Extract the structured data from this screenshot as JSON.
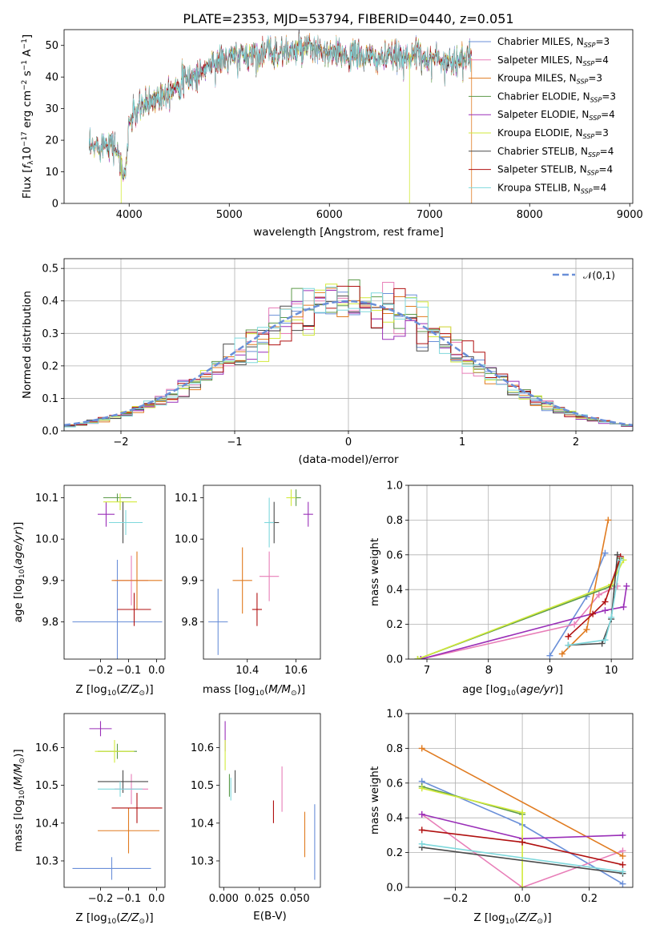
{
  "figure_title": "PLATE=2353, MJD=53794, FIBERID=0440, z=0.051",
  "models": [
    {
      "name": "Chabrier MILES",
      "nssp": 3,
      "color": "#6a8fd8"
    },
    {
      "name": "Salpeter MILES",
      "nssp": 4,
      "color": "#e87eb8"
    },
    {
      "name": "Kroupa MILES",
      "nssp": 3,
      "color": "#e07b20"
    },
    {
      "name": "Chabrier ELODIE",
      "nssp": 3,
      "color": "#5c9a4a"
    },
    {
      "name": "Salpeter ELODIE",
      "nssp": 4,
      "color": "#9a2fb8"
    },
    {
      "name": "Kroupa ELODIE",
      "nssp": 3,
      "color": "#d2ea3a"
    },
    {
      "name": "Chabrier STELIB",
      "nssp": 4,
      "color": "#4a4a4a"
    },
    {
      "name": "Salpeter STELIB",
      "nssp": 4,
      "color": "#b01010"
    },
    {
      "name": "Kroupa STELIB",
      "nssp": 4,
      "color": "#7fd8dc"
    }
  ],
  "chart_data": [
    {
      "id": "spectrum",
      "type": "line",
      "xlabel": "wavelength [Angstrom, rest frame]",
      "ylabel": "Flux [f_λ10^-17 erg cm^-2 s^-1 A^-1]",
      "xlim": [
        3350,
        9030
      ],
      "ylim": [
        0,
        55
      ],
      "xticks": [
        4000,
        5000,
        6000,
        7000,
        8000,
        9000
      ],
      "yticks": [
        0,
        10,
        20,
        30,
        40,
        50
      ],
      "x_range": [
        3600,
        7420
      ],
      "x": [
        3600,
        3800,
        3920,
        3950,
        4000,
        4100,
        4300,
        4500,
        4700,
        4800,
        5000,
        5200,
        5400,
        5600,
        5800,
        6000,
        6200,
        6400,
        6600,
        6800,
        7000,
        7200,
        7400
      ],
      "y": [
        17,
        20,
        15,
        12,
        26,
        30,
        34,
        38,
        41,
        44,
        46,
        47,
        48,
        48,
        49,
        47,
        47,
        46,
        46,
        47,
        46,
        45,
        46
      ]
    },
    {
      "id": "residuals",
      "type": "line",
      "xlabel": "(data-model)/error",
      "ylabel": "Normed distribution",
      "legend": "𝒩(0,1)",
      "xlim": [
        -2.5,
        2.5
      ],
      "ylim": [
        0,
        0.53
      ],
      "xticks": [
        -2,
        -1,
        0,
        1,
        2
      ],
      "yticks": [
        0.0,
        0.1,
        0.2,
        0.3,
        0.4,
        0.5
      ],
      "grid": true,
      "bin_edges_range": [
        -2.5,
        2.5
      ],
      "bin_width": 0.1,
      "gaussian": {
        "mu": 0,
        "sigma": 1
      }
    },
    {
      "id": "age_vs_Z",
      "type": "scatter",
      "xlabel": "Z [log10(Z/Z⊙)]",
      "ylabel": "age  [log10(age/yr)]",
      "xlim": [
        -0.33,
        0.03
      ],
      "ylim": [
        9.71,
        10.13
      ],
      "xticks": [
        -0.2,
        -0.1,
        0.0
      ],
      "yticks": [
        9.8,
        9.9,
        10.0,
        10.1
      ],
      "points": [
        {
          "x": -0.14,
          "y": 9.8,
          "ex": 0.16,
          "ey": 0.15
        },
        {
          "x": -0.09,
          "y": 9.9,
          "ex": 0.06,
          "ey": 0.06
        },
        {
          "x": -0.07,
          "y": 9.9,
          "ex": 0.09,
          "ey": 0.07
        },
        {
          "x": -0.14,
          "y": 10.1,
          "ex": 0.05,
          "ey": 0.01
        },
        {
          "x": -0.18,
          "y": 10.06,
          "ex": 0.03,
          "ey": 0.03
        },
        {
          "x": -0.13,
          "y": 10.09,
          "ex": 0.06,
          "ey": 0.02
        },
        {
          "x": -0.12,
          "y": 10.04,
          "ex": 0.05,
          "ey": 0.05
        },
        {
          "x": -0.08,
          "y": 9.83,
          "ex": 0.06,
          "ey": 0.04
        },
        {
          "x": -0.11,
          "y": 10.04,
          "ex": 0.06,
          "ey": 0.03
        }
      ]
    },
    {
      "id": "age_vs_mass",
      "type": "scatter",
      "xlabel": "mass [log10(M/M⊙)]",
      "ylabel": "",
      "xlim": [
        10.22,
        10.7
      ],
      "ylim": [
        9.71,
        10.13
      ],
      "xticks": [
        10.4,
        10.6
      ],
      "yticks": [
        9.8,
        9.9,
        10.0,
        10.1
      ],
      "points": [
        {
          "x": 10.28,
          "y": 9.8,
          "ex": 0.04,
          "ey": 0.08
        },
        {
          "x": 10.49,
          "y": 9.91,
          "ex": 0.04,
          "ey": 0.06
        },
        {
          "x": 10.38,
          "y": 9.9,
          "ex": 0.04,
          "ey": 0.08
        },
        {
          "x": 10.6,
          "y": 10.1,
          "ex": 0.02,
          "ey": 0.02
        },
        {
          "x": 10.65,
          "y": 10.06,
          "ex": 0.02,
          "ey": 0.03
        },
        {
          "x": 10.58,
          "y": 10.1,
          "ex": 0.02,
          "ey": 0.02
        },
        {
          "x": 10.51,
          "y": 10.04,
          "ex": 0.02,
          "ey": 0.05
        },
        {
          "x": 10.44,
          "y": 9.83,
          "ex": 0.02,
          "ey": 0.04
        },
        {
          "x": 10.49,
          "y": 10.04,
          "ex": 0.02,
          "ey": 0.06
        }
      ]
    },
    {
      "id": "mass_weight_vs_age",
      "type": "line",
      "xlabel": "age  [log10(age/yr)]",
      "ylabel": "mass weight",
      "xlim": [
        6.7,
        10.35
      ],
      "ylim": [
        0,
        1
      ],
      "xticks": [
        7,
        8,
        9,
        10
      ],
      "yticks": [
        0.0,
        0.2,
        0.4,
        0.6,
        0.8,
        1.0
      ],
      "grid": true,
      "series": [
        {
          "x": [
            9.0,
            9.6,
            9.9
          ],
          "y": [
            0.02,
            0.36,
            0.61
          ]
        },
        {
          "x": [
            6.9,
            9.4,
            9.8,
            10.1
          ],
          "y": [
            0.0,
            0.2,
            0.37,
            0.42
          ]
        },
        {
          "x": [
            9.2,
            9.6,
            9.95
          ],
          "y": [
            0.03,
            0.17,
            0.8
          ]
        },
        {
          "x": [
            6.85,
            10.0,
            10.15
          ],
          "y": [
            0.0,
            0.42,
            0.58
          ]
        },
        {
          "x": [
            6.9,
            9.9,
            10.2,
            10.25
          ],
          "y": [
            0.0,
            0.28,
            0.3,
            0.42
          ]
        },
        {
          "x": [
            6.85,
            10.0,
            10.2
          ],
          "y": [
            0.0,
            0.43,
            0.57
          ]
        },
        {
          "x": [
            9.3,
            9.85,
            10.0,
            10.1
          ],
          "y": [
            0.08,
            0.09,
            0.23,
            0.6
          ]
        },
        {
          "x": [
            9.3,
            9.7,
            9.9,
            10.15
          ],
          "y": [
            0.13,
            0.26,
            0.33,
            0.59
          ]
        },
        {
          "x": [
            9.3,
            9.9,
            10.0,
            10.15
          ],
          "y": [
            0.08,
            0.11,
            0.24,
            0.57
          ]
        }
      ]
    },
    {
      "id": "mass_vs_Z",
      "type": "scatter",
      "xlabel": "Z [log10(Z/Z⊙)]",
      "ylabel": "mass [log10(M/M⊙)]",
      "xlim": [
        -0.33,
        0.03
      ],
      "ylim": [
        10.23,
        10.69
      ],
      "xticks": [
        -0.2,
        -0.1,
        0.0
      ],
      "yticks": [
        10.3,
        10.4,
        10.5,
        10.6
      ],
      "points": [
        {
          "x": -0.16,
          "y": 10.28,
          "ex": 0.14,
          "ey": 0.03
        },
        {
          "x": -0.09,
          "y": 10.49,
          "ex": 0.06,
          "ey": 0.04
        },
        {
          "x": -0.1,
          "y": 10.38,
          "ex": 0.11,
          "ey": 0.06
        },
        {
          "x": -0.14,
          "y": 10.59,
          "ex": 0.07,
          "ey": 0.02
        },
        {
          "x": -0.2,
          "y": 10.65,
          "ex": 0.04,
          "ey": 0.02
        },
        {
          "x": -0.15,
          "y": 10.59,
          "ex": 0.07,
          "ey": 0.03
        },
        {
          "x": -0.12,
          "y": 10.51,
          "ex": 0.09,
          "ey": 0.03
        },
        {
          "x": -0.07,
          "y": 10.44,
          "ex": 0.09,
          "ey": 0.04
        },
        {
          "x": -0.13,
          "y": 10.49,
          "ex": 0.08,
          "ey": 0.02
        }
      ]
    },
    {
      "id": "mass_vs_ebv",
      "type": "scatter",
      "xlabel": "E(B-V)",
      "ylabel": "",
      "xlim": [
        -0.003,
        0.068
      ],
      "ylim": [
        10.23,
        10.69
      ],
      "xticks": [
        0.0,
        0.025,
        0.05
      ],
      "xtick_labels": [
        "0.000",
        "0.025",
        "0.050"
      ],
      "yticks": [
        10.3,
        10.4,
        10.5,
        10.6
      ],
      "points": [
        {
          "x": 0.064,
          "y": 10.35,
          "ex": 0.0,
          "ey": 0.1
        },
        {
          "x": 0.041,
          "y": 10.49,
          "ex": 0.0,
          "ey": 0.06
        },
        {
          "x": 0.057,
          "y": 10.37,
          "ex": 0.0,
          "ey": 0.06
        },
        {
          "x": 0.004,
          "y": 10.5,
          "ex": 0.0,
          "ey": 0.03
        },
        {
          "x": 0.001,
          "y": 10.63,
          "ex": 0.0,
          "ey": 0.04
        },
        {
          "x": 0.001,
          "y": 10.58,
          "ex": 0.0,
          "ey": 0.04
        },
        {
          "x": 0.008,
          "y": 10.51,
          "ex": 0.0,
          "ey": 0.03
        },
        {
          "x": 0.035,
          "y": 10.43,
          "ex": 0.0,
          "ey": 0.03
        },
        {
          "x": 0.005,
          "y": 10.49,
          "ex": 0.0,
          "ey": 0.03
        }
      ]
    },
    {
      "id": "mass_weight_vs_Z",
      "type": "line",
      "xlabel": "Z [log10(Z/Z⊙)]",
      "ylabel": "mass weight",
      "xlim": [
        -0.34,
        0.33
      ],
      "ylim": [
        0,
        1
      ],
      "xticks": [
        -0.2,
        0.0,
        0.2
      ],
      "yticks": [
        0.0,
        0.2,
        0.4,
        0.6,
        0.8,
        1.0
      ],
      "grid": true,
      "series": [
        {
          "x": [
            -0.3,
            0.0,
            0.3
          ],
          "y": [
            0.61,
            0.36,
            0.02
          ]
        },
        {
          "x": [
            -0.3,
            0.0,
            0.3
          ],
          "y": [
            0.42,
            0.0,
            0.21
          ]
        },
        {
          "x": [
            -0.3,
            0.3
          ],
          "y": [
            0.8,
            0.18
          ]
        },
        {
          "x": [
            -0.3,
            0.0
          ],
          "y": [
            0.58,
            0.42
          ]
        },
        {
          "x": [
            -0.3,
            0.0,
            0.3
          ],
          "y": [
            0.42,
            0.28,
            0.3
          ]
        },
        {
          "x": [
            -0.3,
            0.0,
            0.0
          ],
          "y": [
            0.57,
            0.43,
            0.0
          ]
        },
        {
          "x": [
            -0.3,
            0.3
          ],
          "y": [
            0.23,
            0.08
          ]
        },
        {
          "x": [
            -0.3,
            0.0,
            0.3
          ],
          "y": [
            0.33,
            0.26,
            0.13
          ]
        },
        {
          "x": [
            -0.3,
            0.3
          ],
          "y": [
            0.25,
            0.09
          ]
        }
      ]
    }
  ]
}
